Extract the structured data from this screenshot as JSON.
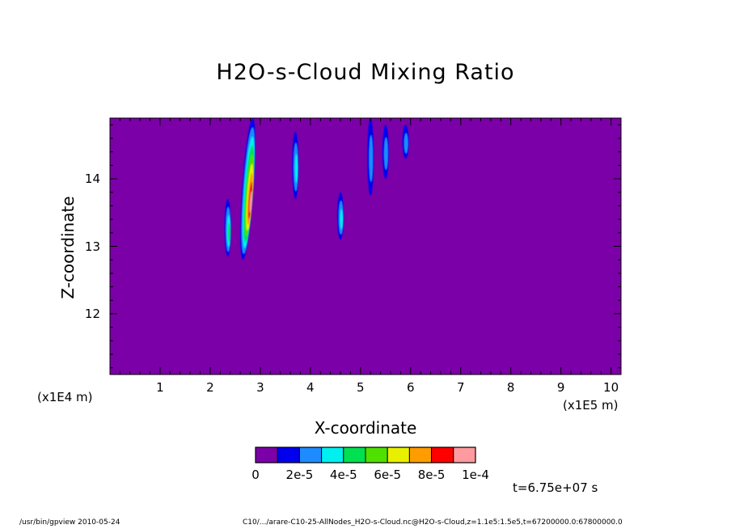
{
  "chart_data": {
    "type": "heatmap",
    "title": "H2O-s-Cloud Mixing Ratio",
    "xlabel": "X-coordinate",
    "ylabel": "Z-coordinate",
    "x_unit_label": "(x1E5 m)",
    "y_unit_label": "(x1E4 m)",
    "x_ticks": [
      "1",
      "2",
      "3",
      "4",
      "5",
      "6",
      "7",
      "8",
      "9",
      "10"
    ],
    "y_ticks": [
      "12",
      "13",
      "14"
    ],
    "xlim": [
      0,
      10.2
    ],
    "ylim": [
      11.1,
      14.9
    ],
    "background_value": 0,
    "colorbar": {
      "levels": [
        0,
        1e-05,
        2e-05,
        3e-05,
        4e-05,
        5e-05,
        6e-05,
        7e-05,
        8e-05,
        9e-05,
        0.0001
      ],
      "tick_labels": [
        "0",
        "2e-5",
        "4e-5",
        "6e-5",
        "8e-5",
        "1e-4"
      ],
      "colors": [
        "#7b00a8",
        "#0000ee",
        "#1e8cff",
        "#00f0f0",
        "#00e050",
        "#50e000",
        "#e8f000",
        "#ff9c00",
        "#ff0000",
        "#ff9aa0"
      ]
    },
    "features": [
      {
        "x": 2.35,
        "z_min": 12.85,
        "z_max": 13.7,
        "max_value": 4e-05
      },
      {
        "x": 2.75,
        "z_min": 12.8,
        "z_max": 14.9,
        "max_value": 9e-05
      },
      {
        "x": 3.7,
        "z_min": 13.7,
        "z_max": 14.7,
        "max_value": 3e-05
      },
      {
        "x": 4.6,
        "z_min": 13.1,
        "z_max": 13.8,
        "max_value": 3e-05
      },
      {
        "x": 5.2,
        "z_min": 13.75,
        "z_max": 14.9,
        "max_value": 2e-05
      },
      {
        "x": 5.5,
        "z_min": 14.0,
        "z_max": 14.8,
        "max_value": 2e-05
      },
      {
        "x": 5.9,
        "z_min": 14.3,
        "z_max": 14.8,
        "max_value": 2e-05
      }
    ]
  },
  "time_label": "t=6.75e+07 s",
  "footer": {
    "left": "/usr/bin/gpview  2010-05-24",
    "right": "C10/.../arare-C10-25-AllNodes_H2O-s-Cloud.nc@H2O-s-Cloud,z=1.1e5:1.5e5,t=67200000.0:67800000.0"
  }
}
